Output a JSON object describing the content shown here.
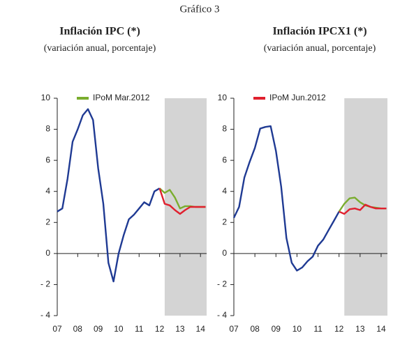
{
  "title": "Gráfico 3",
  "chart_data": [
    {
      "type": "line",
      "title": "Inflación IPC (*)",
      "subtitle": "(variación anual, porcentaje)",
      "xlim": [
        2007,
        2014.3
      ],
      "ylim": [
        -4,
        10
      ],
      "xticks": [
        {
          "value": 2007,
          "label": "07"
        },
        {
          "value": 2008,
          "label": "08"
        },
        {
          "value": 2009,
          "label": "09"
        },
        {
          "value": 2010,
          "label": "10"
        },
        {
          "value": 2011,
          "label": "11"
        },
        {
          "value": 2012,
          "label": "12"
        },
        {
          "value": 2013,
          "label": "13"
        },
        {
          "value": 2014,
          "label": "14"
        }
      ],
      "yticks": [
        10,
        8,
        6,
        4,
        2,
        0,
        {
          "value": -2,
          "label": "- 2"
        },
        {
          "value": -4,
          "label": "- 4"
        }
      ],
      "projection_range": [
        2012.25,
        2014.3
      ],
      "grid": false,
      "legend": "top-left",
      "series": [
        {
          "color": "#1f3a93",
          "x": [
            2007,
            2007.25,
            2007.5,
            2007.75,
            2008,
            2008.25,
            2008.5,
            2008.75,
            2009,
            2009.25,
            2009.5,
            2009.75,
            2010,
            2010.25,
            2010.5,
            2010.75,
            2011,
            2011.25,
            2011.5,
            2011.75,
            2012
          ],
          "values": [
            2.7,
            2.9,
            4.8,
            7.2,
            8.0,
            8.9,
            9.3,
            8.6,
            5.5,
            3.2,
            -0.6,
            -1.8,
            0.0,
            1.2,
            2.2,
            2.5,
            2.9,
            3.3,
            3.1,
            4.0,
            4.2
          ]
        },
        {
          "name": "IPoM Mar.2012",
          "color": "#7aad2e",
          "x": [
            2012,
            2012.25,
            2012.5,
            2012.75,
            2013,
            2013.25,
            2013.5,
            2013.75,
            2014,
            2014.25
          ],
          "values": [
            4.2,
            3.9,
            4.1,
            3.6,
            2.9,
            3.05,
            3.05,
            3.0,
            3.0,
            3.0
          ]
        },
        {
          "color": "#e0202e",
          "x": [
            2012,
            2012.25,
            2012.5,
            2012.75,
            2013,
            2013.25,
            2013.5,
            2013.75,
            2014,
            2014.25
          ],
          "values": [
            4.2,
            3.2,
            3.1,
            2.8,
            2.55,
            2.8,
            3.0,
            3.0,
            3.0,
            3.0
          ]
        }
      ]
    },
    {
      "type": "line",
      "title": "Inflación IPCX1 (*)",
      "subtitle": "(variación anual, porcentaje)",
      "xlim": [
        2007,
        2014.3
      ],
      "ylim": [
        -4,
        10
      ],
      "xticks": [
        {
          "value": 2007,
          "label": "07"
        },
        {
          "value": 2008,
          "label": "08"
        },
        {
          "value": 2009,
          "label": "09"
        },
        {
          "value": 2010,
          "label": "10"
        },
        {
          "value": 2011,
          "label": "11"
        },
        {
          "value": 2012,
          "label": "12"
        },
        {
          "value": 2013,
          "label": "13"
        },
        {
          "value": 2014,
          "label": "14"
        }
      ],
      "yticks": [
        10,
        8,
        6,
        4,
        2,
        0,
        {
          "value": -2,
          "label": "- 2"
        },
        {
          "value": -4,
          "label": "- 4"
        }
      ],
      "projection_range": [
        2012.25,
        2014.3
      ],
      "grid": false,
      "legend": "top-left",
      "series": [
        {
          "color": "#1f3a93",
          "x": [
            2007,
            2007.25,
            2007.5,
            2007.75,
            2008,
            2008.25,
            2008.5,
            2008.75,
            2009,
            2009.25,
            2009.5,
            2009.75,
            2010,
            2010.25,
            2010.5,
            2010.75,
            2011,
            2011.25,
            2011.5,
            2011.75,
            2012
          ],
          "values": [
            2.3,
            3.0,
            4.9,
            5.9,
            6.8,
            8.05,
            8.15,
            8.2,
            6.6,
            4.3,
            1.0,
            -0.6,
            -1.1,
            -0.9,
            -0.5,
            -0.2,
            0.5,
            0.9,
            1.5,
            2.1,
            2.7
          ]
        },
        {
          "color": "#7aad2e",
          "x": [
            2012,
            2012.25,
            2012.5,
            2012.75,
            2013,
            2013.25,
            2013.5,
            2013.75,
            2014,
            2014.25
          ],
          "values": [
            2.7,
            3.2,
            3.55,
            3.6,
            3.3,
            3.1,
            3.0,
            2.95,
            2.9,
            2.9
          ]
        },
        {
          "name": "IPoM Jun.2012",
          "color": "#e0202e",
          "x": [
            2012,
            2012.25,
            2012.5,
            2012.75,
            2013,
            2013.25,
            2013.5,
            2013.75,
            2014,
            2014.25
          ],
          "values": [
            2.7,
            2.55,
            2.85,
            2.9,
            2.8,
            3.15,
            3.0,
            2.9,
            2.9,
            2.9
          ]
        }
      ]
    }
  ]
}
